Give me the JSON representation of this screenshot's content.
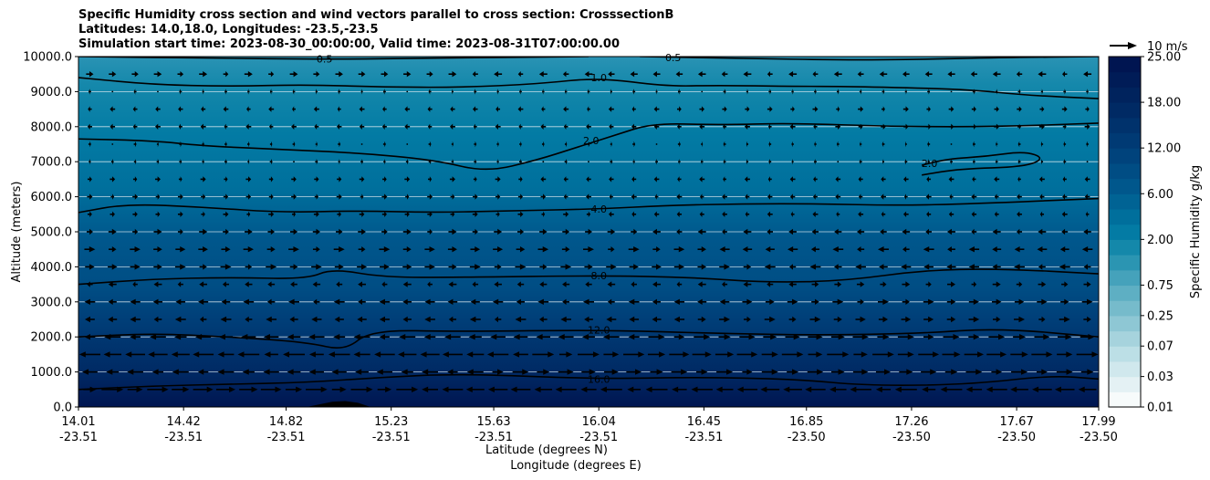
{
  "chart_data": {
    "type": "filled-contour-cross-section",
    "title_lines": [
      "Specific Humidity cross section and wind vectors parallel to cross section: CrosssectionB",
      "Latitudes: 14.0,18.0, Longitudes: -23.5,-23.5",
      "Simulation start time: 2023-08-30_00:00:00, Valid time: 2023-08-31T07:00:00.00"
    ],
    "ylabel": "Altitude (meters)",
    "xlabel_lat": "Latitude (degrees N)",
    "xlabel_lon": "Longitude (degrees E)",
    "ylim": [
      0,
      10000
    ],
    "xlim": [
      14.01,
      17.99
    ],
    "y_ticks": [
      0,
      1000,
      2000,
      3000,
      4000,
      5000,
      6000,
      7000,
      8000,
      9000,
      10000
    ],
    "y_tick_labels": [
      "0.0",
      "1000.0",
      "2000.0",
      "3000.0",
      "4000.0",
      "5000.0",
      "6000.0",
      "7000.0",
      "8000.0",
      "9000.0",
      "10000.0"
    ],
    "x_ticks": [
      14.01,
      14.42,
      14.82,
      15.23,
      15.63,
      16.04,
      16.45,
      16.85,
      17.26,
      17.67,
      17.99
    ],
    "x_tick_lat_labels": [
      "14.01",
      "14.42",
      "14.82",
      "15.23",
      "15.63",
      "16.04",
      "16.45",
      "16.85",
      "17.26",
      "17.67",
      "17.99"
    ],
    "x_tick_lon_labels": [
      "-23.51",
      "-23.51",
      "-23.51",
      "-23.51",
      "-23.51",
      "-23.51",
      "-23.51",
      "-23.50",
      "-23.50",
      "-23.50",
      "-23.50"
    ],
    "colorbar": {
      "label": "Specific Humidity g/kg",
      "levels": [
        0.01,
        0.02,
        0.03,
        0.05,
        0.07,
        0.1,
        0.25,
        0.5,
        0.75,
        1.0,
        1.5,
        2.0,
        3.0,
        4.0,
        6.0,
        8.0,
        10.0,
        12.0,
        14.0,
        16.0,
        18.0,
        20.0,
        22.0,
        25.0
      ],
      "tick_values": [
        0.01,
        0.03,
        0.07,
        0.25,
        0.75,
        2.0,
        6.0,
        12.0,
        18.0,
        25.0
      ],
      "tick_labels": [
        "0.01",
        "0.03",
        "0.07",
        "0.25",
        "0.75",
        "2.00",
        "6.00",
        "12.00",
        "18.00",
        "25.00"
      ],
      "colors": [
        "#f7fbfb",
        "#e4f1f4",
        "#d0e8ed",
        "#bcdfe6",
        "#a6d3dd",
        "#8ec7d4",
        "#76bbcb",
        "#5eafc3",
        "#45a2bb",
        "#2b95b2",
        "#1488aa",
        "#037ba4",
        "#006f9c",
        "#006394",
        "#00578c",
        "#004d84",
        "#00437c",
        "#003a74",
        "#00326c",
        "#002a64",
        "#00235d",
        "#001c57",
        "#001551"
      ]
    },
    "contour_lines": [
      {
        "level": 0.5,
        "label": "0.5",
        "label_at": [
          14.97,
          9930
        ],
        "points": [
          [
            14.01,
            10000
          ],
          [
            14.5,
            9960
          ],
          [
            15.0,
            9920
          ],
          [
            15.4,
            9960
          ],
          [
            16.0,
            10000
          ]
        ]
      },
      {
        "level": 0.5,
        "label": "0.5",
        "label_at": [
          16.33,
          9970
        ],
        "points": [
          [
            16.2,
            10000
          ],
          [
            16.6,
            9950
          ],
          [
            17.0,
            9900
          ],
          [
            17.3,
            9920
          ],
          [
            17.6,
            9970
          ],
          [
            17.99,
            10000
          ]
        ]
      },
      {
        "level": 1.0,
        "label": "1.0",
        "label_at": [
          16.04,
          9400
        ],
        "points": [
          [
            14.01,
            9400
          ],
          [
            14.3,
            9200
          ],
          [
            14.6,
            9150
          ],
          [
            14.9,
            9200
          ],
          [
            15.2,
            9130
          ],
          [
            15.5,
            9120
          ],
          [
            15.8,
            9220
          ],
          [
            16.04,
            9400
          ],
          [
            16.3,
            9150
          ],
          [
            16.5,
            9180
          ],
          [
            16.8,
            9150
          ],
          [
            17.0,
            9150
          ],
          [
            17.3,
            9100
          ],
          [
            17.5,
            9050
          ],
          [
            17.7,
            8900
          ],
          [
            17.99,
            8800
          ]
        ]
      },
      {
        "level": 2.0,
        "label": "2.0",
        "label_at": [
          16.01,
          7600
        ],
        "points": [
          [
            14.01,
            7650
          ],
          [
            14.3,
            7600
          ],
          [
            14.5,
            7450
          ],
          [
            14.8,
            7350
          ],
          [
            15.1,
            7250
          ],
          [
            15.4,
            7050
          ],
          [
            15.6,
            6700
          ],
          [
            15.8,
            7050
          ],
          [
            15.95,
            7400
          ],
          [
            16.1,
            7750
          ],
          [
            16.25,
            8100
          ],
          [
            16.5,
            8050
          ],
          [
            16.8,
            8100
          ],
          [
            17.2,
            8000
          ],
          [
            17.6,
            8000
          ],
          [
            17.99,
            8100
          ]
        ]
      },
      {
        "level": 2.0,
        "label": "2.0",
        "label_at": [
          17.33,
          6950
        ],
        "points": [
          [
            17.3,
            6620
          ],
          [
            17.45,
            6800
          ],
          [
            17.7,
            6850
          ],
          [
            17.78,
            7100
          ],
          [
            17.7,
            7300
          ],
          [
            17.55,
            7150
          ],
          [
            17.4,
            7080
          ],
          [
            17.3,
            6900
          ]
        ]
      },
      {
        "level": 4.0,
        "label": "4.0",
        "label_at": [
          16.04,
          5650
        ],
        "points": [
          [
            14.01,
            5550
          ],
          [
            14.2,
            5800
          ],
          [
            14.5,
            5700
          ],
          [
            14.8,
            5550
          ],
          [
            15.1,
            5600
          ],
          [
            15.4,
            5550
          ],
          [
            15.7,
            5600
          ],
          [
            16.04,
            5650
          ],
          [
            16.3,
            5750
          ],
          [
            16.6,
            5800
          ],
          [
            16.9,
            5800
          ],
          [
            17.2,
            5750
          ],
          [
            17.5,
            5800
          ],
          [
            17.99,
            5950
          ]
        ]
      },
      {
        "level": 8.0,
        "label": "8.0",
        "label_at": [
          16.04,
          3750
        ],
        "points": [
          [
            14.01,
            3500
          ],
          [
            14.3,
            3650
          ],
          [
            14.6,
            3700
          ],
          [
            14.9,
            3650
          ],
          [
            15.0,
            3950
          ],
          [
            15.2,
            3700
          ],
          [
            15.5,
            3700
          ],
          [
            16.04,
            3750
          ],
          [
            16.4,
            3700
          ],
          [
            16.7,
            3550
          ],
          [
            17.0,
            3600
          ],
          [
            17.3,
            3900
          ],
          [
            17.6,
            3950
          ],
          [
            17.99,
            3800
          ]
        ]
      },
      {
        "level": 12.0,
        "label": "12.0",
        "label_at": [
          16.04,
          2200
        ],
        "points": [
          [
            14.01,
            2000
          ],
          [
            14.3,
            2100
          ],
          [
            14.6,
            2000
          ],
          [
            14.9,
            1850
          ],
          [
            15.05,
            1600
          ],
          [
            15.15,
            2200
          ],
          [
            15.5,
            2150
          ],
          [
            16.04,
            2200
          ],
          [
            16.5,
            2100
          ],
          [
            16.9,
            2050
          ],
          [
            17.3,
            2100
          ],
          [
            17.6,
            2250
          ],
          [
            17.99,
            2000
          ]
        ]
      },
      {
        "level": 16.0,
        "label": "16.0",
        "label_at": [
          16.04,
          800
        ],
        "points": [
          [
            14.01,
            500
          ],
          [
            14.3,
            600
          ],
          [
            14.6,
            650
          ],
          [
            14.9,
            700
          ],
          [
            15.2,
            850
          ],
          [
            15.5,
            950
          ],
          [
            16.04,
            800
          ],
          [
            16.4,
            850
          ],
          [
            16.8,
            800
          ],
          [
            17.1,
            600
          ],
          [
            17.5,
            650
          ],
          [
            17.8,
            900
          ],
          [
            17.99,
            800
          ]
        ]
      }
    ],
    "terrain": {
      "points": [
        [
          14.9,
          0
        ],
        [
          15.0,
          150
        ],
        [
          15.05,
          170
        ],
        [
          15.1,
          120
        ],
        [
          15.15,
          0
        ]
      ]
    },
    "wind_vectors": {
      "reference_key": "10 m/s",
      "reference_speed": 10,
      "levels_m": [
        500,
        1000,
        1500,
        2000,
        2500,
        3000,
        3500,
        4000,
        4500,
        5000,
        5500,
        6000,
        6500,
        7000,
        7500,
        8000,
        8500,
        9000,
        9500
      ],
      "u_by_level_mps": [
        8,
        -6,
        -8,
        -6,
        -4,
        -4,
        -3,
        4,
        4,
        3,
        2,
        2,
        2,
        1,
        1,
        -2,
        -2,
        -1,
        3
      ],
      "sign_reversal_x": [
        [
          15.3,
          1.0
        ],
        [
          15.6,
          1.0
        ],
        [
          15.8,
          1.0
        ],
        [
          16.2,
          1.0
        ],
        [
          16.4,
          1.0
        ],
        [
          16.6,
          1.0
        ],
        [
          16.8,
          1.0
        ],
        [
          16.7,
          1.0
        ],
        [
          16.5,
          1.0
        ],
        [
          16.2,
          1.0
        ],
        [
          16.0,
          1.0
        ],
        [
          15.9,
          1.0
        ],
        [
          15.8,
          1.0
        ],
        [
          16.2,
          1.0
        ],
        [
          16.5,
          1.0
        ],
        [
          16.9,
          1.0
        ],
        [
          16.3,
          1.0
        ],
        [
          16.4,
          1.0
        ],
        [
          15.5,
          1.0
        ]
      ]
    }
  }
}
